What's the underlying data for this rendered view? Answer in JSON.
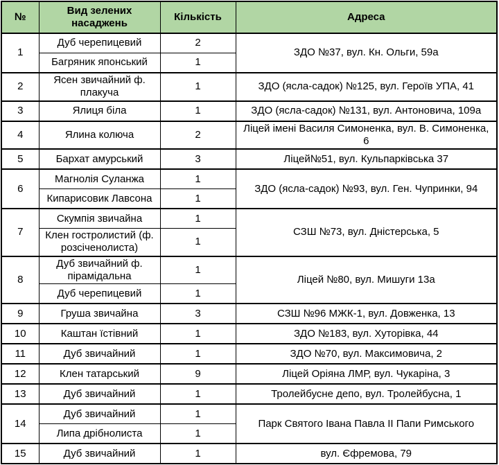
{
  "table": {
    "title": "green-plantings-inventory",
    "headers": [
      "№",
      "Вид зелених насаджень",
      "Кількість",
      "Адреса"
    ],
    "colors": {
      "header_bg": "#b1d6a4",
      "border": "#000000",
      "text": "#000000",
      "body_bg": "#ffffff"
    },
    "groups": [
      {
        "num": "1",
        "address": "ЗДО №37, вул. Кн. Ольги, 59а",
        "species": [
          {
            "name": "Дуб черепицевий",
            "qty": "2"
          },
          {
            "name": "Багряник японський",
            "qty": "1"
          }
        ]
      },
      {
        "num": "2",
        "address": "ЗДО (ясла-садок) №125, вул. Героїв УПА, 41",
        "species": [
          {
            "name": "Ясен звичайний ф. плакуча",
            "qty": "1"
          }
        ]
      },
      {
        "num": "3",
        "address": "ЗДО (ясла-садок) №131, вул. Антоновича, 109а",
        "species": [
          {
            "name": "Ялиця біла",
            "qty": "1"
          }
        ]
      },
      {
        "num": "4",
        "address": "Ліцей імені Василя Симоненка, вул. В. Симоненка, 6",
        "species": [
          {
            "name": "Ялина колюча",
            "qty": "2"
          }
        ]
      },
      {
        "num": "5",
        "address": "Ліцей№51, вул. Кульпарківська 37",
        "species": [
          {
            "name": "Бархат амурський",
            "qty": "3"
          }
        ]
      },
      {
        "num": "6",
        "address": "ЗДО (ясла-садок) №93, вул. Ген. Чупринки, 94",
        "species": [
          {
            "name": "Магнолія Суланжа",
            "qty": "1"
          },
          {
            "name": "Кипарисовик Лавсона",
            "qty": "1"
          }
        ]
      },
      {
        "num": "7",
        "address": "СЗШ №73, вул. Дністерська, 5",
        "species": [
          {
            "name": "Скумпія звичайна",
            "qty": "1"
          },
          {
            "name": "Клен гостролистий (ф. розсіченолиста)",
            "qty": "1"
          }
        ]
      },
      {
        "num": "8",
        "address": "Ліцей №80, вул. Мишуги 13а",
        "species": [
          {
            "name": "Дуб звичайний ф. пірамідальна",
            "qty": "1"
          },
          {
            "name": "Дуб черепицевий",
            "qty": "1"
          }
        ]
      },
      {
        "num": "9",
        "address": "СЗШ №96 МЖК-1, вул. Довженка, 13",
        "species": [
          {
            "name": "Груша звичайна",
            "qty": "3"
          }
        ]
      },
      {
        "num": "10",
        "address": "ЗДО №183, вул. Хуторівка, 44",
        "species": [
          {
            "name": "Каштан їстівний",
            "qty": "1"
          }
        ]
      },
      {
        "num": "11",
        "address": "ЗДО №70, вул. Максимовича, 2",
        "species": [
          {
            "name": "Дуб звичайний",
            "qty": "1"
          }
        ]
      },
      {
        "num": "12",
        "address": "Ліцей Оріяна ЛМР, вул. Чукаріна, 3",
        "species": [
          {
            "name": "Клен татарський",
            "qty": "9"
          }
        ]
      },
      {
        "num": "13",
        "address": "Тролейбусне депо, вул. Тролейбусна, 1",
        "species": [
          {
            "name": "Дуб звичайний",
            "qty": "1"
          }
        ]
      },
      {
        "num": "14",
        "address": "Парк Святого Івана Павла II Папи Римського",
        "species": [
          {
            "name": "Дуб звичайний",
            "qty": "1"
          },
          {
            "name": "Липа дрібнолиста",
            "qty": "1"
          }
        ]
      },
      {
        "num": "15",
        "address": "вул. Єфремова, 79",
        "species": [
          {
            "name": "Дуб звичайний",
            "qty": "1"
          }
        ]
      }
    ]
  }
}
